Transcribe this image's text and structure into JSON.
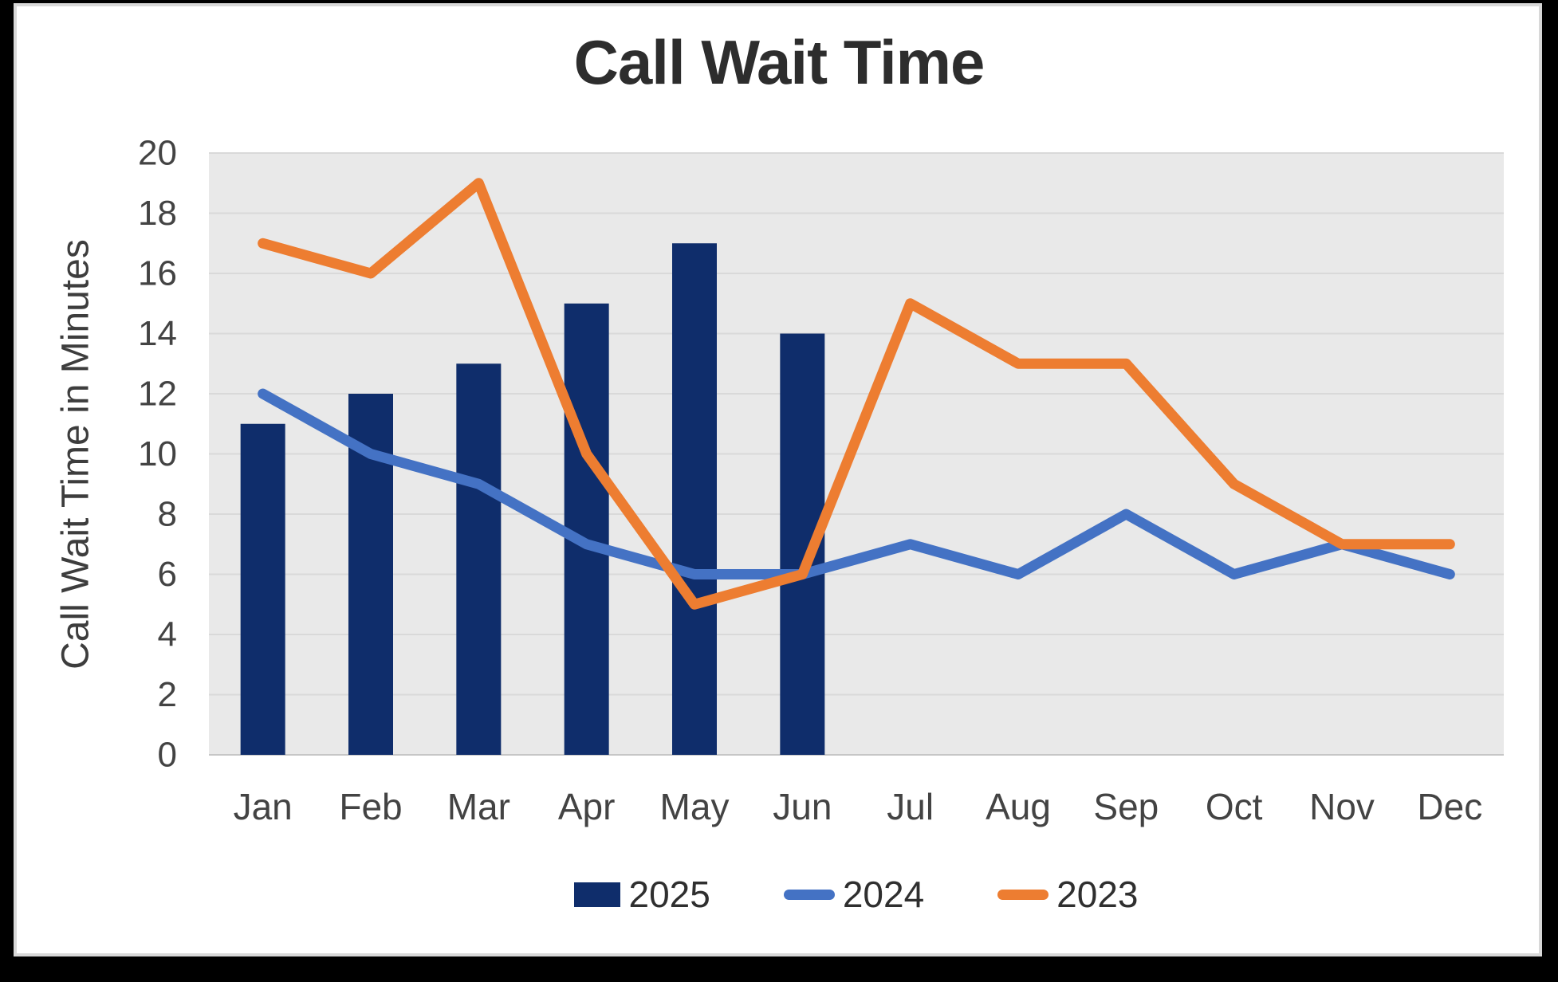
{
  "chart_data": {
    "type": "combo",
    "title": "Call Wait Time",
    "xlabel": "",
    "ylabel": "Call Wait Time in Minutes",
    "categories": [
      "Jan",
      "Feb",
      "Mar",
      "Apr",
      "May",
      "Jun",
      "Jul",
      "Aug",
      "Sep",
      "Oct",
      "Nov",
      "Dec"
    ],
    "ylim": [
      0,
      20
    ],
    "y_ticks": [
      0,
      2,
      4,
      6,
      8,
      10,
      12,
      14,
      16,
      18,
      20
    ],
    "grid": true,
    "legend_position": "bottom",
    "series": [
      {
        "name": "2025",
        "type": "bar",
        "color": "#0F2D6B",
        "values": [
          11,
          12,
          13,
          15,
          17,
          14,
          null,
          null,
          null,
          null,
          null,
          null
        ]
      },
      {
        "name": "2024",
        "type": "line",
        "color": "#4472C4",
        "values": [
          12,
          10,
          9,
          7,
          6,
          6,
          7,
          6,
          8,
          6,
          7,
          6
        ]
      },
      {
        "name": "2023",
        "type": "line",
        "color": "#ED7D31",
        "values": [
          17,
          16,
          19,
          10,
          5,
          6,
          15,
          13,
          13,
          9,
          7,
          7
        ]
      }
    ]
  },
  "colors": {
    "page_background": "#000000",
    "card_background": "#ffffff",
    "card_border": "#d8d8d8",
    "plot_background": "#e9e9e9",
    "gridline": "#d9d9d9",
    "baseline": "#c6c6c6",
    "axis_text": "#434343",
    "title_text": "#2d2d2d"
  }
}
